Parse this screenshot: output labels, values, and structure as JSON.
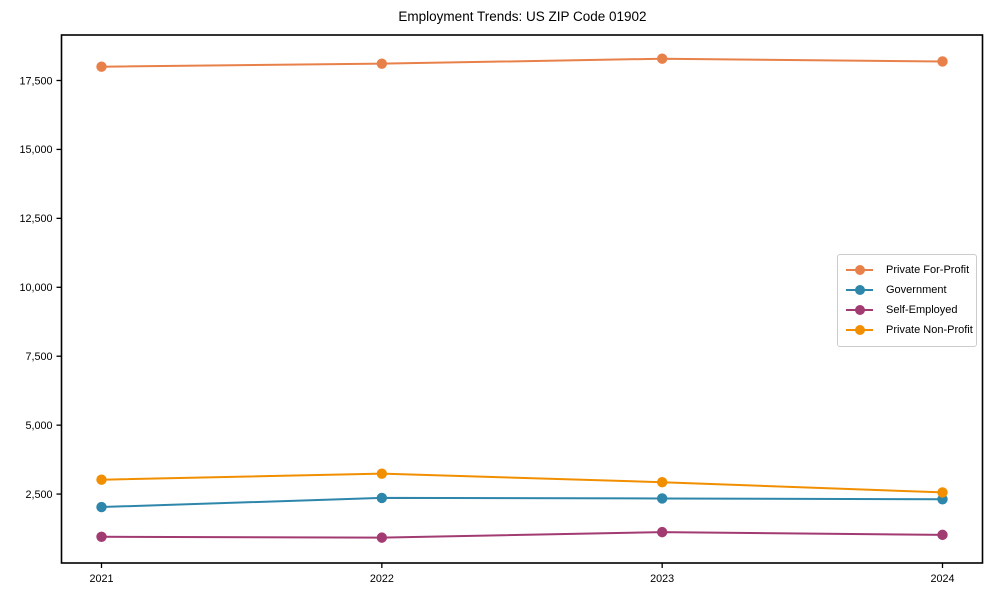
{
  "chart_data": {
    "type": "line",
    "title": "Employment Trends: US ZIP Code 01902",
    "x_tick_labels": [
      "2021",
      "2022",
      "2023",
      "2024"
    ],
    "y_ticks": [
      2500,
      5000,
      7500,
      10000,
      12500,
      15000,
      17500
    ],
    "y_tick_labels": [
      "2,500",
      "5,000",
      "7,500",
      "10,000",
      "12,500",
      "15,000",
      "17,500"
    ],
    "ylim": [
      0,
      19150
    ],
    "grid": false,
    "legend_position": "center right",
    "marker": "circle",
    "axis_color": "#000000",
    "series": [
      {
        "name": "Private For-Profit",
        "color": "#E8804A",
        "values": [
          18000,
          18110,
          18290,
          18190
        ]
      },
      {
        "name": "Government",
        "color": "#2E86AB",
        "values": [
          2030,
          2360,
          2340,
          2310
        ]
      },
      {
        "name": "Self-Employed",
        "color": "#A23B72",
        "values": [
          950,
          920,
          1120,
          1020
        ]
      },
      {
        "name": "Private Non-Profit",
        "color": "#F18F01",
        "values": [
          3020,
          3240,
          2930,
          2560
        ]
      }
    ]
  }
}
